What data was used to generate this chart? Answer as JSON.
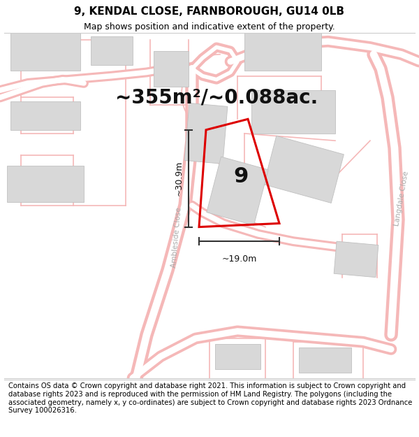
{
  "title": "9, KENDAL CLOSE, FARNBOROUGH, GU14 0LB",
  "subtitle": "Map shows position and indicative extent of the property.",
  "area_text": "~355m²/~0.088ac.",
  "label_number": "9",
  "dim_width": "~19.0m",
  "dim_height": "~30.9m",
  "background_color": "#ffffff",
  "map_bg": "#ffffff",
  "plot_color": "#dd0000",
  "footer_text": "Contains OS data © Crown copyright and database right 2021. This information is subject to Crown copyright and database rights 2023 and is reproduced with the permission of HM Land Registry. The polygons (including the associated geometry, namely x, y co-ordinates) are subject to Crown copyright and database rights 2023 Ordnance Survey 100026316.",
  "road_color": "#f5b8b8",
  "road_fill": "#fce8e8",
  "building_color": "#d8d8d8",
  "building_stroke": "#c0c0c0",
  "title_fontsize": 11,
  "subtitle_fontsize": 9,
  "area_fontsize": 20,
  "footer_fontsize": 7.2,
  "dim_fontsize": 9,
  "label_fontsize": 22
}
